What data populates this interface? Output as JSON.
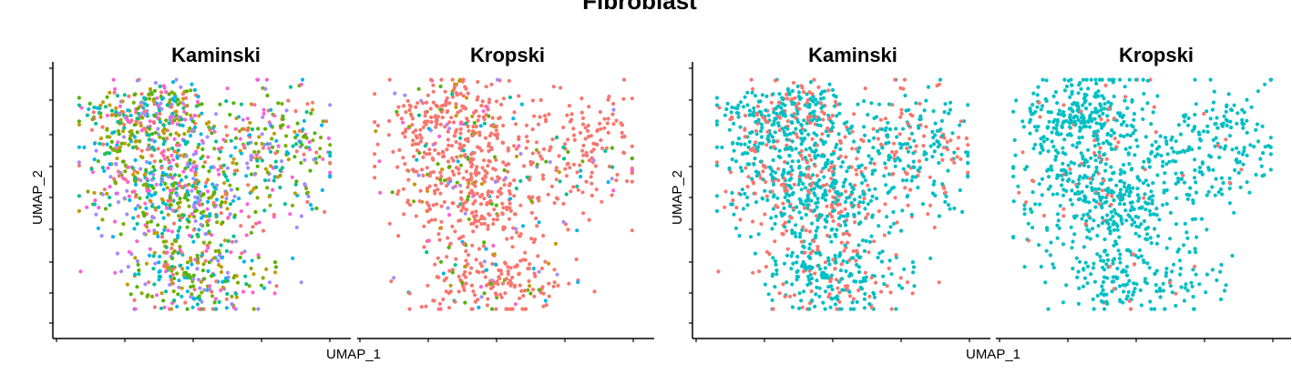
{
  "title": "Fibroblast",
  "colors": {
    "axis": "#000000",
    "palette_left": [
      "#F8766D",
      "#C49A00",
      "#53B400",
      "#00C094",
      "#00B6EB",
      "#A58AFF",
      "#FB61D7",
      "#7CAE00"
    ],
    "red": "#F8766D",
    "teal": "#00BFC4"
  },
  "chart_data": [
    {
      "type": "scatter",
      "panels": [
        "Kaminski",
        "Kropski"
      ],
      "xlabel": "UMAP_1",
      "ylabel": "UMAP_2",
      "legend": "none",
      "grid": false,
      "coloring": "multi-category (legend not shown)"
    },
    {
      "type": "scatter",
      "panels": [
        "Kaminski",
        "Kropski"
      ],
      "xlabel": "UMAP_1",
      "ylabel": "UMAP_2",
      "legend": "none",
      "grid": false,
      "coloring": "two categories (red / teal, legend not shown)"
    }
  ]
}
